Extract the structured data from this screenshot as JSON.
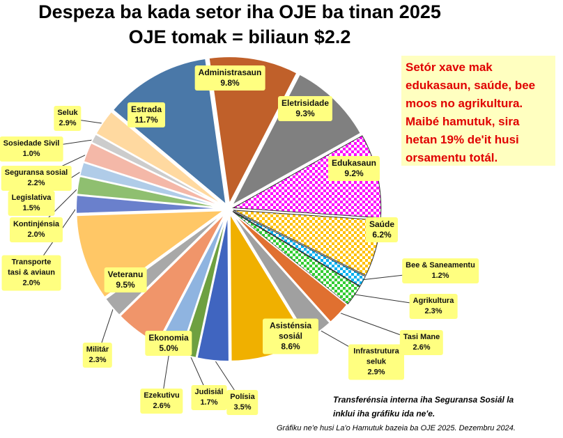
{
  "chart_data": {
    "type": "pie",
    "title": "Despeza ba kada setor iha OJE ba tinan 2025",
    "subtitle": "OJE tomak = biliaun $2.2",
    "slices": [
      {
        "label": "Administrasaun",
        "value": 9.8,
        "pct": "9.8%",
        "color": "#c0602a"
      },
      {
        "label": "Eletrisidade",
        "value": 9.3,
        "pct": "9.3%",
        "color": "#808080"
      },
      {
        "label": "Edukasaun",
        "value": 9.2,
        "pct": "9.2%",
        "color": "#ff00ff",
        "pattern": true
      },
      {
        "label": "Saúde",
        "value": 6.2,
        "pct": "6.2%",
        "color": "#ffc000",
        "pattern": true
      },
      {
        "label": "Bee & Saneamentu",
        "value": 1.2,
        "pct": "1.2%",
        "color": "#00b0f0",
        "pattern": true
      },
      {
        "label": "Agrikultura",
        "value": 2.3,
        "pct": "2.3%",
        "color": "#33cc33",
        "pattern": true
      },
      {
        "label": "Tasi  Mane",
        "value": 2.6,
        "pct": "2.6%",
        "color": "#e07030"
      },
      {
        "label": "Infrastrutura seluk",
        "value": 2.9,
        "pct": "2.9%",
        "color": "#a0a0a0"
      },
      {
        "label": "Asisténsia sosiál",
        "value": 8.6,
        "pct": "8.6%",
        "color": "#f0b000"
      },
      {
        "label": "Polísia",
        "value": 3.5,
        "pct": "3.5%",
        "color": "#4065c0"
      },
      {
        "label": "Judisiál",
        "value": 1.7,
        "pct": "1.7%",
        "color": "#6ea040"
      },
      {
        "label": "Ezekutivu",
        "value": 2.6,
        "pct": "2.6%",
        "color": "#8fb4e0"
      },
      {
        "label": "Ekonomia",
        "value": 5.0,
        "pct": "5.0%",
        "color": "#f0956a"
      },
      {
        "label": "Militár",
        "value": 2.3,
        "pct": "2.3%",
        "color": "#a8a8a8"
      },
      {
        "label": "Veteranu",
        "value": 9.5,
        "pct": "9.5%",
        "color": "#ffc766"
      },
      {
        "label": "Transporte tasi & aviaun",
        "value": 2.0,
        "pct": "2.0%",
        "color": "#6a80cc"
      },
      {
        "label": "Kontinjénsia",
        "value": 2.0,
        "pct": "2.0%",
        "color": "#8fbf70"
      },
      {
        "label": "Legislativa",
        "value": 1.5,
        "pct": "1.5%",
        "color": "#b0cce8"
      },
      {
        "label": "Seguransa  sosial",
        "value": 2.2,
        "pct": "2.2%",
        "color": "#f4b8a8"
      },
      {
        "label": "Sosiedade Sivil",
        "value": 1.0,
        "pct": "1.0%",
        "color": "#cccccc"
      },
      {
        "label": "Seluk",
        "value": 2.9,
        "pct": "2.9%",
        "color": "#ffd9a0"
      },
      {
        "label": "Estrada",
        "value": 11.7,
        "pct": "11.7%",
        "color": "#4a78a8"
      }
    ]
  },
  "note": "Setór xave mak edukasaun,  saúde, bee moos no agrikultura. Maibé hamutuk,  sira hetan 19% de'it husi orsamentu  totál.",
  "footnote_line1": "Transferénsia interna iha Seguransa  Sosiál la",
  "footnote_line2": "inklui iha gráfiku ida ne'e.",
  "source": "Gráfiku ne'e husi La'o Hamutuk bazeia ba OJE 2025. Dezembru 2024."
}
